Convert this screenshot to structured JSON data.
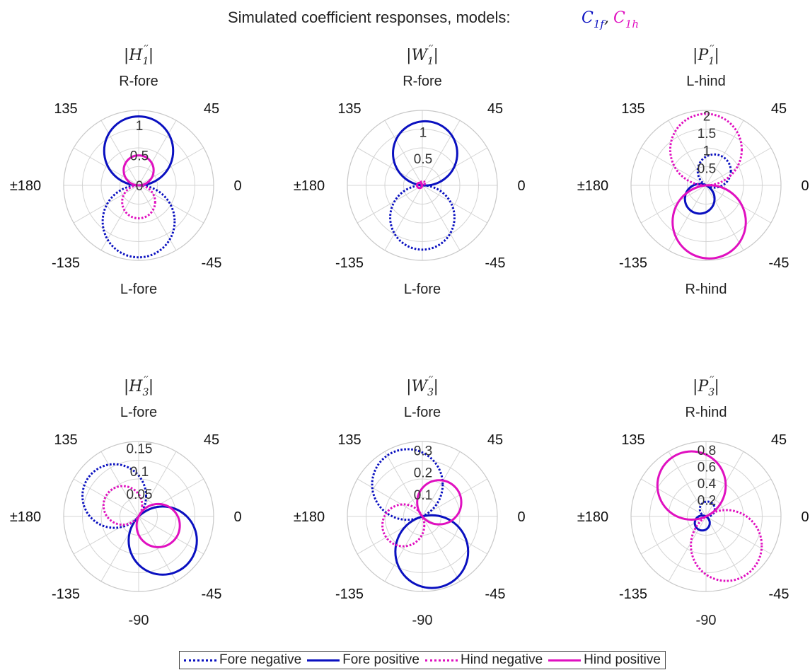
{
  "figure": {
    "title": "Simulated coefficient responses, models:",
    "model_1": "C",
    "model_1_sub": "1f",
    "model_sep": ",",
    "model_2": "C",
    "model_2_sub": "1h"
  },
  "colors": {
    "fore": "#0a10c0",
    "hind": "#e010c0",
    "grid": "#d4d4d4"
  },
  "legend": [
    {
      "label": "Fore negative",
      "color": "#0a10c0",
      "style": "dotted"
    },
    {
      "label": "Fore positive",
      "color": "#0a10c0",
      "style": "solid"
    },
    {
      "label": "Hind negative",
      "color": "#e010c0",
      "style": "dotted"
    },
    {
      "label": "Hind positive",
      "color": "#e010c0",
      "style": "solid"
    }
  ],
  "chart_data": [
    {
      "type": "polar",
      "title": "|H1''|",
      "title_base": "H",
      "title_sub": "1",
      "top_label": "R-fore",
      "bottom_label": "L-fore",
      "angle_labels": {
        "a0": "0",
        "a45": "45",
        "a135": "135",
        "a180": "±180",
        "am135": "-135",
        "am45": "-45"
      },
      "rlim": [
        0,
        1.25
      ],
      "rticks": [
        0,
        0.5,
        1
      ],
      "rtick_labels": [
        "0",
        "0.5",
        "1"
      ],
      "series": [
        {
          "name": "Fore negative",
          "diameter": 1.2,
          "angle": -90
        },
        {
          "name": "Fore positive",
          "diameter": 1.15,
          "angle": 90
        },
        {
          "name": "Hind negative",
          "diameter": 0.55,
          "angle": -90
        },
        {
          "name": "Hind positive",
          "diameter": 0.5,
          "angle": 90
        }
      ]
    },
    {
      "type": "polar",
      "title": "|W1''|",
      "title_base": "W",
      "title_sub": "1",
      "top_label": "R-fore",
      "bottom_label": "L-fore",
      "angle_labels": {
        "a0": "0",
        "a45": "45",
        "a135": "135",
        "a180": "±180",
        "am135": "-135",
        "am45": "-45"
      },
      "rlim": [
        0,
        1.4
      ],
      "rticks": [
        0.5,
        1
      ],
      "rtick_labels": [
        "0.5",
        "1"
      ],
      "series": [
        {
          "name": "Fore negative",
          "diameter": 1.2,
          "angle": -90
        },
        {
          "name": "Fore positive",
          "diameter": 1.2,
          "angle": 85
        },
        {
          "name": "Hind negative",
          "diameter": 0.08,
          "angle": 80
        },
        {
          "name": "Hind positive",
          "diameter": 0.1,
          "angle": 180
        }
      ]
    },
    {
      "type": "polar",
      "title": "|P1''|",
      "title_base": "P",
      "title_sub": "1",
      "top_label": "L-hind",
      "bottom_label": "R-hind",
      "angle_labels": {
        "a0": "0",
        "a45": "45",
        "a135": "135",
        "a180": "±180",
        "am135": "-135",
        "am45": "-45"
      },
      "rlim": [
        0,
        2.15
      ],
      "rticks": [
        0.5,
        1,
        1.5,
        2
      ],
      "rtick_labels": [
        "0.5",
        "1",
        "1.5",
        "2"
      ],
      "series": [
        {
          "name": "Fore negative",
          "diameter": 0.95,
          "angle": 60
        },
        {
          "name": "Fore positive",
          "diameter": 0.85,
          "angle": -115
        },
        {
          "name": "Hind negative",
          "diameter": 2.05,
          "angle": 90
        },
        {
          "name": "Hind positive",
          "diameter": 2.1,
          "angle": -85
        }
      ]
    },
    {
      "type": "polar",
      "title": "|H3''|",
      "title_base": "H",
      "title_sub": "3",
      "top_label": "L-fore",
      "bottom_label": "-90",
      "angle_labels": {
        "a0": "0",
        "a45": "45",
        "a135": "135",
        "a180": "±180",
        "am135": "-135",
        "am45": "-45"
      },
      "rlim": [
        0,
        0.165
      ],
      "rticks": [
        0.05,
        0.1,
        0.15
      ],
      "rtick_labels": [
        "0.05",
        "0.1",
        "0.15"
      ],
      "series": [
        {
          "name": "Fore negative",
          "diameter": 0.14,
          "angle": 140
        },
        {
          "name": "Fore positive",
          "diameter": 0.15,
          "angle": -45
        },
        {
          "name": "Hind negative",
          "diameter": 0.085,
          "angle": 145
        },
        {
          "name": "Hind positive",
          "diameter": 0.095,
          "angle": -25
        }
      ]
    },
    {
      "type": "polar",
      "title": "|W3''|",
      "title_base": "W",
      "title_sub": "3",
      "top_label": "L-fore",
      "bottom_label": "-90",
      "angle_labels": {
        "a0": "0",
        "a45": "45",
        "a135": "135",
        "a180": "±180",
        "am135": "-135",
        "am45": "-45"
      },
      "rlim": [
        0,
        0.34
      ],
      "rticks": [
        0.1,
        0.2,
        0.3
      ],
      "rtick_labels": [
        "0.1",
        "0.2",
        "0.3"
      ],
      "series": [
        {
          "name": "Fore negative",
          "diameter": 0.32,
          "angle": 115
        },
        {
          "name": "Fore positive",
          "diameter": 0.33,
          "angle": -75
        },
        {
          "name": "Hind negative",
          "diameter": 0.19,
          "angle": -155
        },
        {
          "name": "Hind positive",
          "diameter": 0.2,
          "angle": 40
        }
      ]
    },
    {
      "type": "polar",
      "title": "|P3''|",
      "title_base": "P",
      "title_sub": "3",
      "top_label": "R-hind",
      "bottom_label": "-90",
      "angle_labels": {
        "a0": "0",
        "a45": "45",
        "a135": "135",
        "a180": "±180",
        "am135": "-135",
        "am45": "-45"
      },
      "rlim": [
        0,
        0.9
      ],
      "rticks": [
        0.2,
        0.4,
        0.6,
        0.8
      ],
      "rtick_labels": [
        "0.2",
        "0.4",
        "0.6",
        "0.8"
      ],
      "series": [
        {
          "name": "Fore negative",
          "diameter": 0.18,
          "angle": 80
        },
        {
          "name": "Fore positive",
          "diameter": 0.18,
          "angle": -120
        },
        {
          "name": "Hind negative",
          "diameter": 0.85,
          "angle": -55
        },
        {
          "name": "Hind positive",
          "diameter": 0.82,
          "angle": 115
        }
      ]
    }
  ]
}
